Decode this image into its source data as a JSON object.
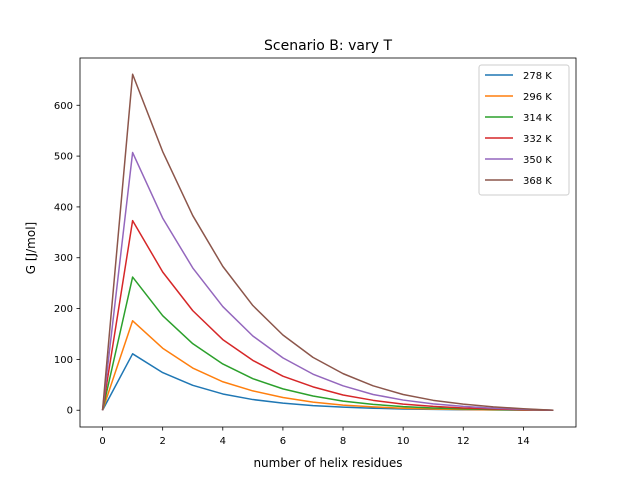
{
  "chart_data": {
    "type": "line",
    "title": "Scenario B: vary T",
    "xlabel": "number of helix residues",
    "ylabel": "G [J/mol]",
    "xlim": [
      -0.75,
      15.75
    ],
    "ylim": [
      -33,
      693
    ],
    "xticks": [
      0,
      2,
      4,
      6,
      8,
      10,
      12,
      14
    ],
    "yticks": [
      0,
      100,
      200,
      300,
      400,
      500,
      600
    ],
    "grid": false,
    "legend_position": "top-right",
    "x": [
      0,
      1,
      2,
      3,
      4,
      5,
      6,
      7,
      8,
      9,
      10,
      11,
      12,
      13,
      14,
      15
    ],
    "series": [
      {
        "name": "278 K",
        "color": "#1f77b4",
        "values": [
          0,
          111,
          74,
          49,
          32,
          21,
          14,
          9,
          6,
          4,
          2.5,
          1.6,
          1,
          0.6,
          0.3,
          0
        ]
      },
      {
        "name": "296 K",
        "color": "#ff7f0e",
        "values": [
          0,
          176,
          122,
          83,
          56,
          38,
          25,
          16,
          10,
          6.5,
          4,
          2.5,
          1.5,
          0.8,
          0.4,
          0
        ]
      },
      {
        "name": "314 K",
        "color": "#2ca02c",
        "values": [
          0,
          262,
          186,
          131,
          91,
          62,
          42,
          28,
          18,
          11.5,
          7,
          4.4,
          2.6,
          1.4,
          0.6,
          0
        ]
      },
      {
        "name": "332 K",
        "color": "#d62728",
        "values": [
          0,
          373,
          272,
          196,
          139,
          98,
          67,
          46,
          30,
          19.5,
          12,
          7.5,
          4.5,
          2.5,
          1,
          0
        ]
      },
      {
        "name": "350 K",
        "color": "#9467bd",
        "values": [
          0,
          507,
          378,
          280,
          204,
          146,
          103,
          71,
          48,
          31,
          20,
          12.5,
          7.5,
          4,
          1.8,
          0
        ]
      },
      {
        "name": "368 K",
        "color": "#8c564b",
        "values": [
          0,
          661,
          509,
          383,
          283,
          206,
          148,
          104,
          72,
          48,
          31,
          19.5,
          12,
          6.5,
          3,
          0
        ]
      }
    ]
  }
}
